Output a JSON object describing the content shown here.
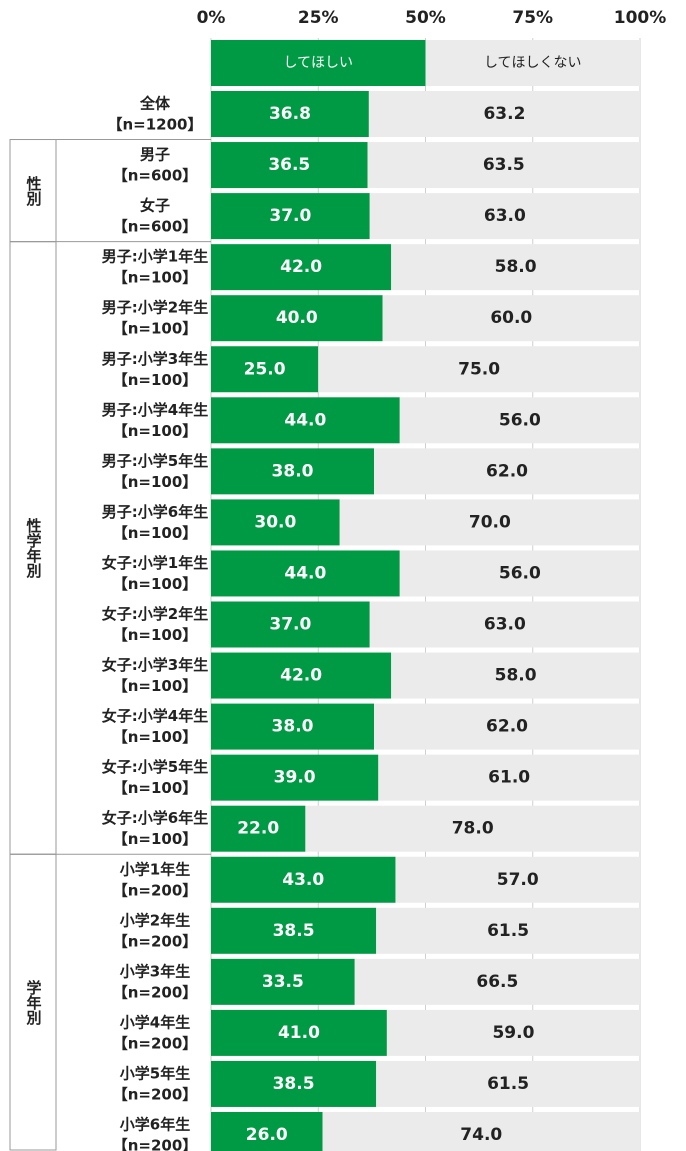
{
  "chart_data": {
    "type": "stacked_barh",
    "categories": [
      [
        "全体",
        "【n=1200】"
      ],
      [
        "男子",
        "【n=600】"
      ],
      [
        "女子",
        "【n=600】"
      ],
      [
        "男子:小学1年生",
        "【n=100】"
      ],
      [
        "男子:小学2年生",
        "【n=100】"
      ],
      [
        "男子:小学3年生",
        "【n=100】"
      ],
      [
        "男子:小学4年生",
        "【n=100】"
      ],
      [
        "男子:小学5年生",
        "【n=100】"
      ],
      [
        "男子:小学6年生",
        "【n=100】"
      ],
      [
        "女子:小学1年生",
        "【n=100】"
      ],
      [
        "女子:小学2年生",
        "【n=100】"
      ],
      [
        "女子:小学3年生",
        "【n=100】"
      ],
      [
        "女子:小学4年生",
        "【n=100】"
      ],
      [
        "女子:小学5年生",
        "【n=100】"
      ],
      [
        "女子:小学6年生",
        "【n=100】"
      ],
      [
        "小学1年生",
        "【n=200】"
      ],
      [
        "小学2年生",
        "【n=200】"
      ],
      [
        "小学3年生",
        "【n=200】"
      ],
      [
        "小学4年生",
        "【n=200】"
      ],
      [
        "小学5年生",
        "【n=200】"
      ],
      [
        "小学6年生",
        "【n=200】"
      ]
    ],
    "category_groups": [
      null,
      "性別",
      "性別",
      "性学年別",
      "性学年別",
      "性学年別",
      "性学年別",
      "性学年別",
      "性学年別",
      "性学年別",
      "性学年別",
      "性学年別",
      "性学年別",
      "性学年別",
      "性学年別",
      "学年別",
      "学年別",
      "学年別",
      "学年別",
      "学年別",
      "学年別"
    ],
    "series": [
      {
        "name": "してほしい",
        "color": "#009a44",
        "values": [
          36.8,
          36.5,
          37.0,
          42.0,
          40.0,
          25.0,
          44.0,
          38.0,
          30.0,
          44.0,
          37.0,
          42.0,
          38.0,
          39.0,
          22.0,
          43.0,
          38.5,
          33.5,
          41.0,
          38.5,
          26.0
        ],
        "value_labels": [
          "36.8",
          "36.5",
          "37.0",
          "42.0",
          "40.0",
          "25.0",
          "44.0",
          "38.0",
          "30.0",
          "44.0",
          "37.0",
          "42.0",
          "38.0",
          "39.0",
          "22.0",
          "43.0",
          "38.5",
          "33.5",
          "41.0",
          "38.5",
          "26.0"
        ]
      },
      {
        "name": "してほしくない",
        "color": "#ebebeb",
        "values": [
          63.2,
          63.5,
          63.0,
          58.0,
          60.0,
          75.0,
          56.0,
          62.0,
          70.0,
          56.0,
          63.0,
          58.0,
          62.0,
          61.0,
          78.0,
          57.0,
          61.5,
          66.5,
          59.0,
          61.5,
          74.0
        ],
        "value_labels": [
          "63.2",
          "63.5",
          "63.0",
          "58.0",
          "60.0",
          "75.0",
          "56.0",
          "62.0",
          "70.0",
          "56.0",
          "63.0",
          "58.0",
          "62.0",
          "61.0",
          "78.0",
          "57.0",
          "61.5",
          "66.5",
          "59.0",
          "61.5",
          "74.0"
        ]
      }
    ],
    "xlim": [
      0,
      100
    ],
    "xticks": [
      {
        "value": 0,
        "label": "0%"
      },
      {
        "value": 25,
        "label": "25%"
      },
      {
        "value": 50,
        "label": "50%"
      },
      {
        "value": 75,
        "label": "75%"
      },
      {
        "value": 100,
        "label": "100%"
      }
    ],
    "grid": true
  }
}
